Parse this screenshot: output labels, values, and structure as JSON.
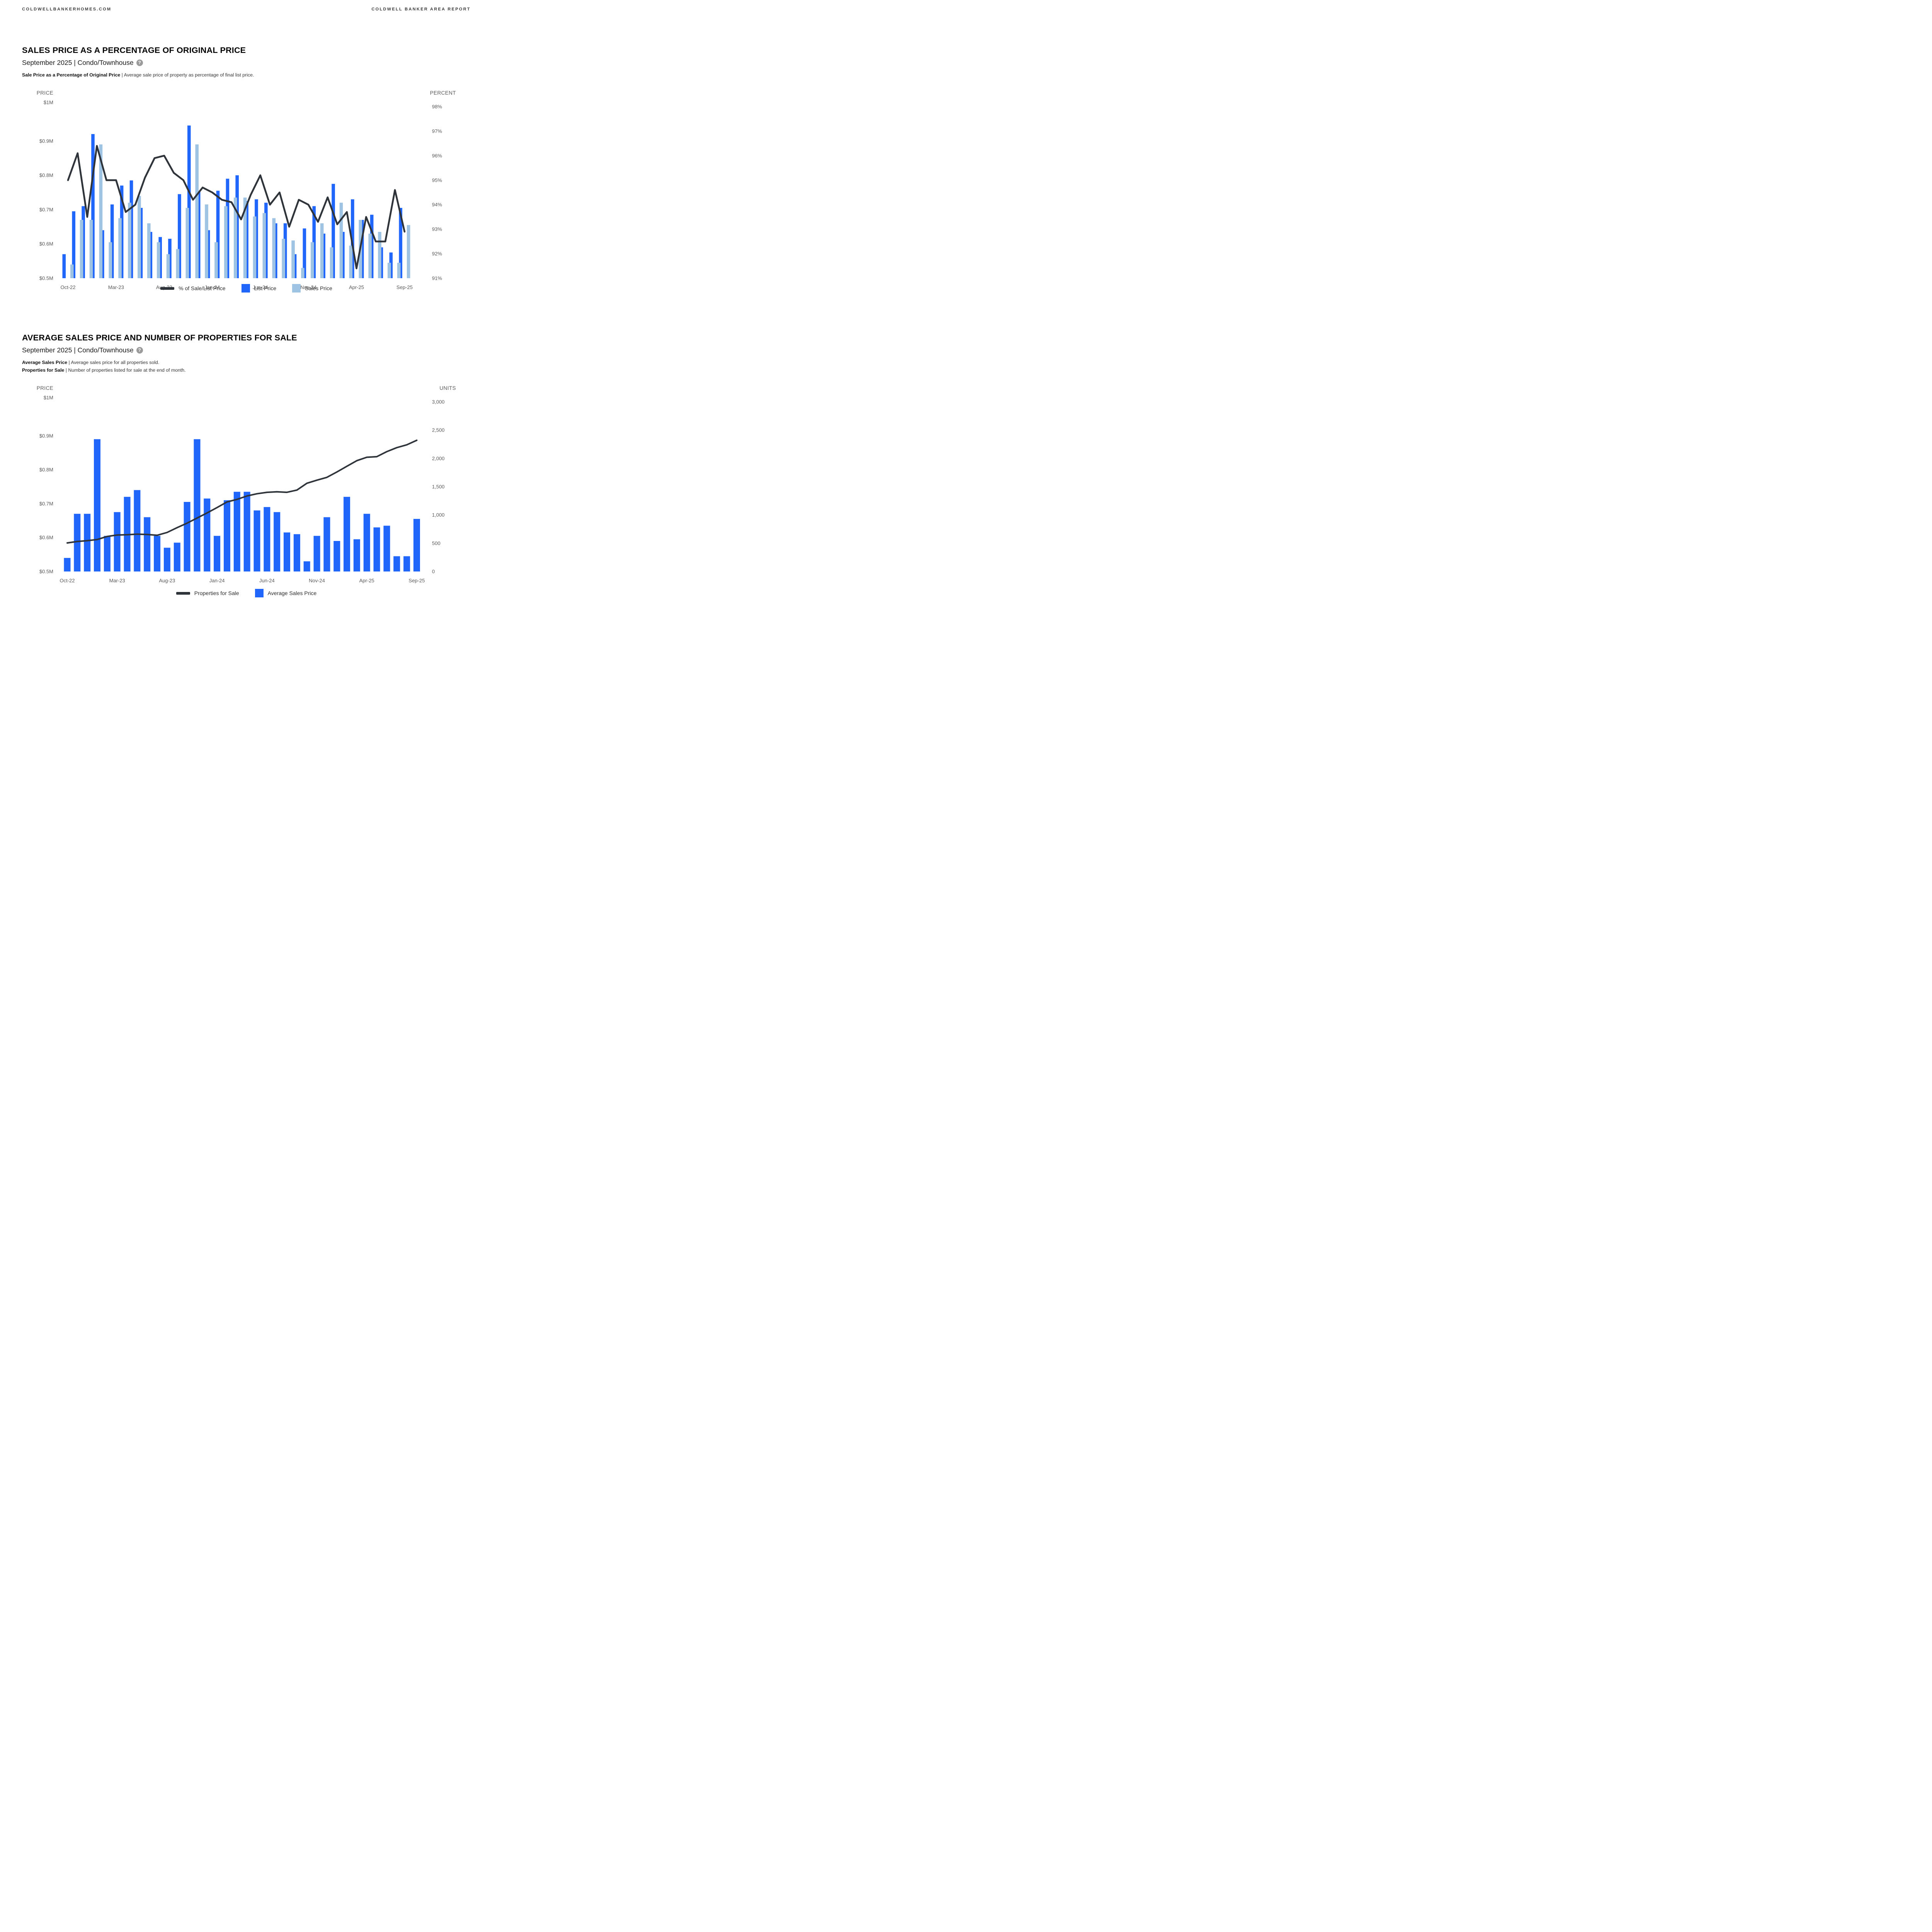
{
  "header": {
    "left": "COLDWELLBANKERHOMES.COM",
    "right": "COLDWELL BANKER AREA REPORT"
  },
  "colors": {
    "list_price_blue": "#2166FB",
    "sales_price_light_blue": "#9FC3E3",
    "line_dark": "#2F343A",
    "axis_text_gray": "#595959",
    "help_icon_gray": "#9B9B9B"
  },
  "sections": [
    {
      "title": "SALES PRICE AS A PERCENTAGE OF ORIGINAL PRICE",
      "subtitle": "September 2025 | Condo/Townhouse",
      "help_icon": "?",
      "descriptions": [
        {
          "term": "Sale Price as a Percentage of Original Price",
          "sep": "|",
          "text": "Average sale price of property as percentage of final list price."
        }
      ],
      "legend": [
        {
          "label": "% of Sale/List Price",
          "swatch": "line"
        },
        {
          "label": "List Price",
          "swatch": "blue"
        },
        {
          "label": "Sales Price",
          "swatch": "light"
        }
      ]
    },
    {
      "title": "AVERAGE SALES PRICE AND NUMBER OF PROPERTIES FOR SALE",
      "subtitle": "September 2025 | Condo/Townhouse",
      "help_icon": "?",
      "descriptions": [
        {
          "term": "Average Sales Price",
          "sep": "|",
          "text": "Average sales price for all properties sold."
        },
        {
          "term": "Properties for Sale",
          "sep": "|",
          "text": "Number of properties listed for sale at the end of month."
        }
      ],
      "legend": [
        {
          "label": "Properties for Sale",
          "swatch": "line"
        },
        {
          "label": "Average Sales Price",
          "swatch": "blue"
        }
      ]
    }
  ],
  "chart_data": [
    {
      "type": "bar+line",
      "title": "SALES PRICE AS A PERCENTAGE OF ORIGINAL PRICE",
      "categories": [
        "Oct-22",
        "Nov-22",
        "Dec-22",
        "Jan-23",
        "Feb-23",
        "Mar-23",
        "Apr-23",
        "May-23",
        "Jun-23",
        "Jul-23",
        "Aug-23",
        "Sep-23",
        "Oct-23",
        "Nov-23",
        "Dec-23",
        "Jan-24",
        "Feb-24",
        "Mar-24",
        "Apr-24",
        "May-24",
        "Jun-24",
        "Jul-24",
        "Aug-24",
        "Sep-24",
        "Oct-24",
        "Nov-24",
        "Dec-24",
        "Jan-25",
        "Feb-25",
        "Mar-25",
        "Apr-25",
        "May-25",
        "Jun-25",
        "Jul-25",
        "Aug-25",
        "Sep-25"
      ],
      "x_ticks_shown": [
        "Oct-22",
        "Mar-23",
        "Aug-23",
        "Jan-24",
        "Jun-24",
        "Nov-24",
        "Apr-25",
        "Sep-25"
      ],
      "y_left": {
        "title": "PRICE",
        "ticks": [
          "$1M",
          "$0.9M",
          "$0.8M",
          "$0.7M",
          "$0.6M",
          "$0.5M"
        ],
        "range": [
          0.5,
          1.0
        ],
        "unit": "$M"
      },
      "y_right": {
        "title": "PERCENT",
        "ticks": [
          "98%",
          "97%",
          "96%",
          "95%",
          "94%",
          "93%",
          "92%",
          "91%"
        ],
        "range": [
          91,
          98
        ],
        "unit": "%"
      },
      "grid": false,
      "legend_position": "bottom",
      "series": [
        {
          "name": "List Price",
          "type": "bar",
          "axis": "left",
          "values": [
            0.57,
            0.695,
            0.71,
            0.92,
            0.64,
            0.715,
            0.77,
            0.785,
            0.705,
            0.635,
            0.62,
            0.615,
            0.745,
            0.945,
            0.755,
            0.64,
            0.755,
            0.79,
            0.8,
            0.725,
            0.73,
            0.72,
            0.66,
            0.66,
            0.57,
            0.645,
            0.71,
            0.63,
            0.775,
            0.635,
            0.73,
            0.67,
            0.685,
            0.59,
            0.575,
            0.705
          ]
        },
        {
          "name": "Sales Price",
          "type": "bar",
          "axis": "left",
          "values": [
            0.54,
            0.67,
            0.67,
            0.89,
            0.605,
            0.675,
            0.72,
            0.74,
            0.66,
            0.605,
            0.57,
            0.585,
            0.705,
            0.89,
            0.715,
            0.605,
            0.71,
            0.735,
            0.735,
            0.68,
            0.69,
            0.675,
            0.615,
            0.61,
            0.53,
            0.605,
            0.66,
            0.59,
            0.72,
            0.595,
            0.67,
            0.63,
            0.635,
            0.545,
            0.545,
            0.655
          ]
        },
        {
          "name": "% of Sale/List Price",
          "type": "line",
          "axis": "right",
          "values": [
            95.0,
            96.1,
            93.5,
            96.4,
            95.0,
            95.0,
            93.7,
            94.0,
            95.1,
            95.9,
            96.0,
            95.3,
            95.0,
            94.2,
            94.7,
            94.5,
            94.2,
            94.1,
            93.4,
            94.4,
            95.2,
            94.0,
            94.5,
            93.1,
            94.2,
            94.0,
            93.3,
            94.3,
            93.2,
            93.7,
            91.4,
            93.5,
            92.5,
            92.5,
            94.6,
            92.9
          ]
        }
      ]
    },
    {
      "type": "bar+line",
      "title": "AVERAGE SALES PRICE AND NUMBER OF PROPERTIES FOR SALE",
      "categories": [
        "Oct-22",
        "Nov-22",
        "Dec-22",
        "Jan-23",
        "Feb-23",
        "Mar-23",
        "Apr-23",
        "May-23",
        "Jun-23",
        "Jul-23",
        "Aug-23",
        "Sep-23",
        "Oct-23",
        "Nov-23",
        "Dec-23",
        "Jan-24",
        "Feb-24",
        "Mar-24",
        "Apr-24",
        "May-24",
        "Jun-24",
        "Jul-24",
        "Aug-24",
        "Sep-24",
        "Oct-24",
        "Nov-24",
        "Dec-24",
        "Jan-25",
        "Feb-25",
        "Mar-25",
        "Apr-25",
        "May-25",
        "Jun-25",
        "Jul-25",
        "Aug-25",
        "Sep-25"
      ],
      "x_ticks_shown": [
        "Oct-22",
        "Mar-23",
        "Aug-23",
        "Jan-24",
        "Jun-24",
        "Nov-24",
        "Apr-25",
        "Sep-25"
      ],
      "y_left": {
        "title": "PRICE",
        "ticks": [
          "$1M",
          "$0.9M",
          "$0.8M",
          "$0.7M",
          "$0.6M",
          "$0.5M"
        ],
        "range": [
          0.5,
          1.0
        ],
        "unit": "$M"
      },
      "y_right": {
        "title": "UNITS",
        "ticks": [
          "3,000",
          "2,500",
          "2,000",
          "1,500",
          "1,000",
          "500",
          "0"
        ],
        "range": [
          0,
          3000
        ],
        "unit": "units"
      },
      "grid": false,
      "legend_position": "bottom",
      "series": [
        {
          "name": "Average Sales Price",
          "type": "bar",
          "axis": "left",
          "values": [
            0.54,
            0.67,
            0.67,
            0.89,
            0.605,
            0.675,
            0.72,
            0.74,
            0.66,
            0.605,
            0.57,
            0.585,
            0.705,
            0.89,
            0.715,
            0.605,
            0.71,
            0.735,
            0.735,
            0.68,
            0.69,
            0.675,
            0.615,
            0.61,
            0.53,
            0.605,
            0.66,
            0.59,
            0.72,
            0.595,
            0.67,
            0.63,
            0.635,
            0.545,
            0.545,
            0.655
          ]
        },
        {
          "name": "Properties for Sale",
          "type": "line",
          "axis": "right",
          "values": [
            505,
            530,
            545,
            565,
            620,
            645,
            650,
            660,
            655,
            640,
            690,
            775,
            855,
            945,
            1035,
            1130,
            1230,
            1275,
            1335,
            1375,
            1400,
            1410,
            1400,
            1440,
            1560,
            1615,
            1665,
            1760,
            1860,
            1960,
            2020,
            2030,
            2120,
            2190,
            2240,
            2320
          ]
        }
      ]
    }
  ]
}
